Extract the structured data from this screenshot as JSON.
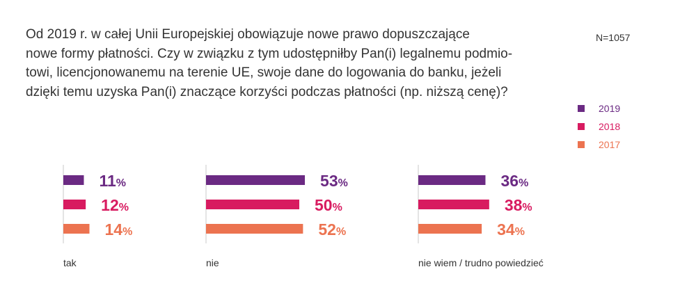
{
  "question": "Od 2019 r. w całej Unii Europejskiej obowiązuje nowe prawo dopuszczające nowe formy płatności. Czy w związku z tym udostępniłby Pan(i) legalnemu podmio-towi, licencjonowanemu na terenie UE, swoje dane do logowania do banku, jeżeli dzięki temu uzyska Pan(i) znaczące korzyści podczas płatności (np. niższą cenę)?",
  "question_lines": [
    "Od 2019 r. w całej Unii Europejskiej obowiązuje nowe prawo dopuszczające",
    "nowe formy płatności. Czy w związku z tym udostępniłby Pan(i) legalnemu podmio-",
    "towi, licencjonowanemu na terenie UE, swoje dane do logowania do banku, jeżeli",
    "dzięki temu uzyska Pan(i) znaczące korzyści podczas płatności (np. niższą cenę)?"
  ],
  "sample_size": "N=1057",
  "colors": {
    "2019": "#6b2a83",
    "2018": "#d81b60",
    "2017": "#ec7350"
  },
  "chart_data": {
    "type": "bar",
    "orientation": "horizontal",
    "unit": "%",
    "categories": [
      "tak",
      "nie",
      "nie wiem / trudno powiedzieć"
    ],
    "series": [
      {
        "name": "2019",
        "values": [
          11,
          53,
          36
        ]
      },
      {
        "name": "2018",
        "values": [
          12,
          50,
          38
        ]
      },
      {
        "name": "2017",
        "values": [
          14,
          52,
          34
        ]
      }
    ],
    "legend_position": "right",
    "grid": false
  }
}
